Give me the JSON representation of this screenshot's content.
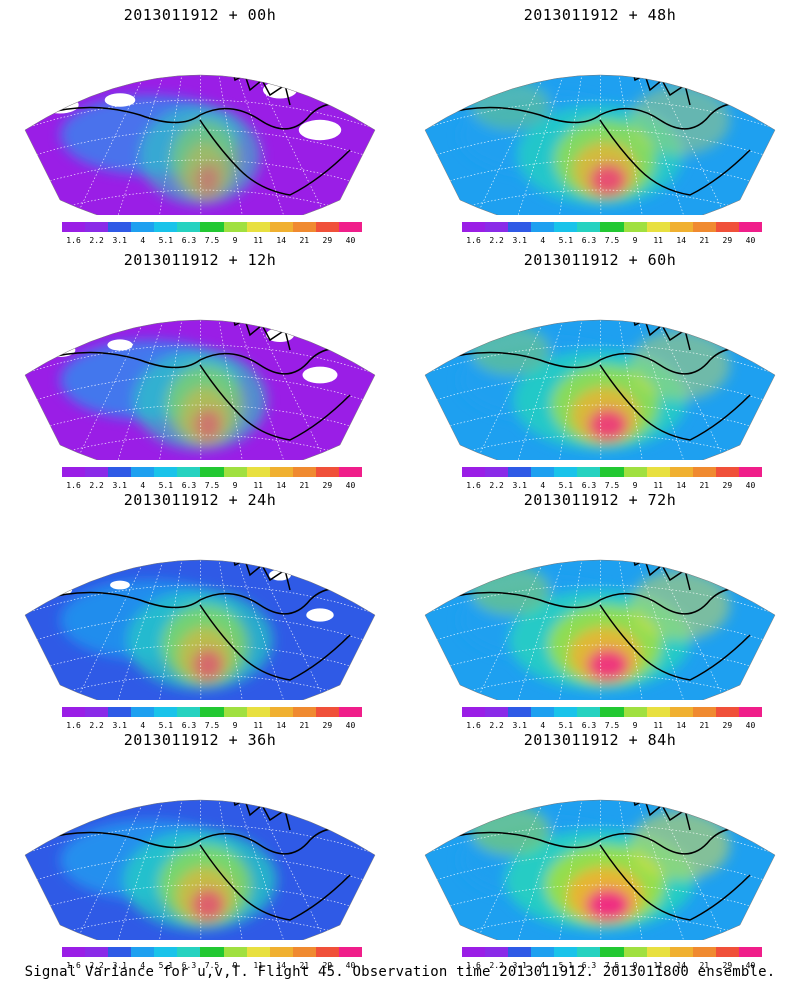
{
  "panels": [
    {
      "title": "2013011912 + 00h",
      "intensity": 0.15
    },
    {
      "title": "2013011912 + 48h",
      "intensity": 0.7
    },
    {
      "title": "2013011912 + 12h",
      "intensity": 0.3
    },
    {
      "title": "2013011912 + 60h",
      "intensity": 0.8
    },
    {
      "title": "2013011912 + 24h",
      "intensity": 0.45
    },
    {
      "title": "2013011912 + 72h",
      "intensity": 0.9
    },
    {
      "title": "2013011912 + 36h",
      "intensity": 0.55
    },
    {
      "title": "2013011912 + 84h",
      "intensity": 1.0
    }
  ],
  "colorbar": {
    "labels": [
      "1.6",
      "2.2",
      "3.1",
      "4",
      "5.1",
      "6.3",
      "7.5",
      "9",
      "11",
      "14",
      "21",
      "29",
      "40"
    ],
    "colors": [
      "#9a1ee6",
      "#8a2be8",
      "#2f5ae6",
      "#1ea0f0",
      "#19c3ea",
      "#26d2c0",
      "#22c832",
      "#a0e040",
      "#e8e040",
      "#f0b030",
      "#f08a30",
      "#f0503a",
      "#f01e8a"
    ]
  },
  "caption": "Signal Variance for u,v,T. Flight 45. Observation time 2013011912. 2013011800 ensemble."
}
